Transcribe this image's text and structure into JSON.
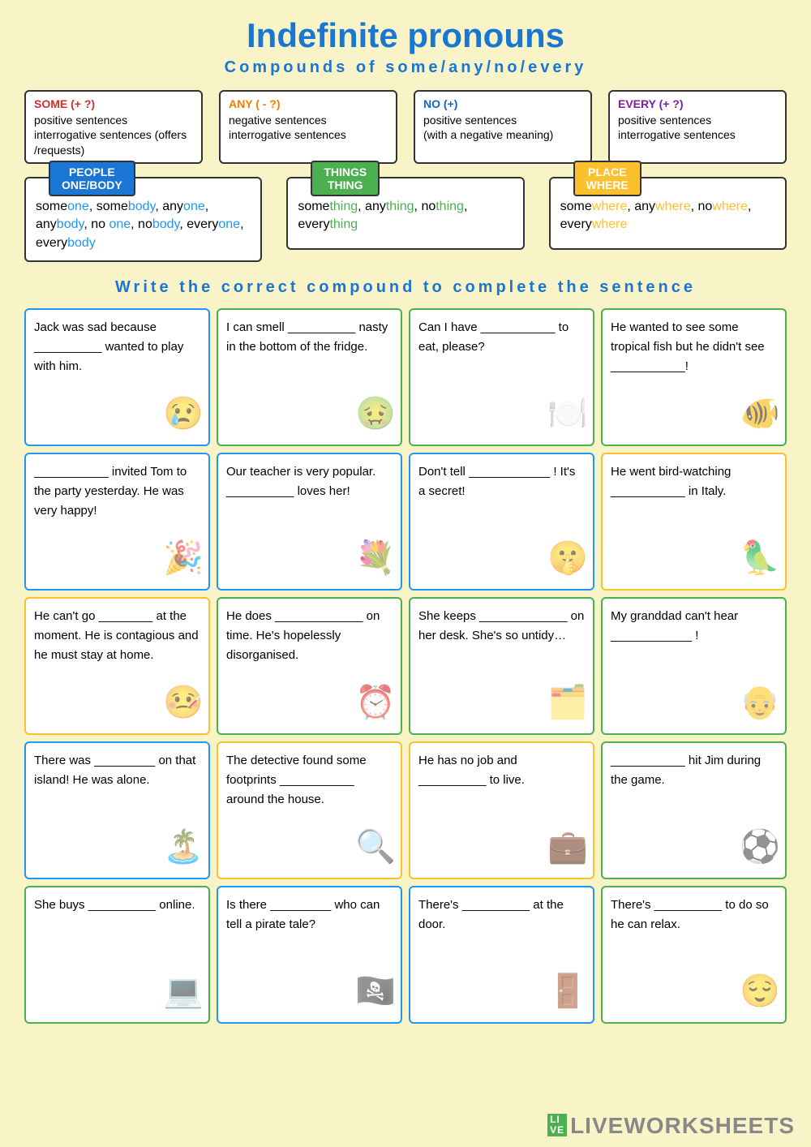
{
  "title": "Indefinite pronouns",
  "subtitle": "Compounds of some/any/no/every",
  "rules": [
    {
      "title": "SOME (+ ?)",
      "color": "red",
      "lines": [
        "positive sentences",
        "interrogative sentences (offers /requests)"
      ]
    },
    {
      "title": "ANY ( - ?)",
      "color": "darkorange",
      "lines": [
        "negative sentences",
        "interrogative sentences"
      ]
    },
    {
      "title": "NO (+)",
      "color": "navy",
      "lines": [
        "positive sentences",
        "(with a negative meaning)"
      ]
    },
    {
      "title": "EVERY (+ ?)",
      "color": "purple",
      "lines": [
        "positive sentences",
        "interrogative sentences"
      ]
    }
  ],
  "categories": [
    {
      "tab": "PEOPLE\nONE/BODY",
      "tabColor": "#1976d2",
      "hlClass": "hl-blue",
      "words": [
        [
          "some",
          "one"
        ],
        [
          "some",
          "body"
        ],
        [
          "any",
          "one"
        ],
        [
          "any",
          "body"
        ],
        [
          "no ",
          "one"
        ],
        [
          "no",
          "body"
        ],
        [
          "every",
          "one"
        ],
        [
          "every",
          "body"
        ]
      ]
    },
    {
      "tab": "THINGS\nTHING",
      "tabColor": "#4caf50",
      "hlClass": "hl-green",
      "words": [
        [
          "some",
          "thing"
        ],
        [
          "any",
          "thing"
        ],
        [
          "no",
          "thing"
        ],
        [
          "every",
          "thing"
        ]
      ]
    },
    {
      "tab": "PLACE\nWHERE",
      "tabColor": "#fbc02d",
      "hlClass": "hl-yellow",
      "words": [
        [
          "some",
          "where"
        ],
        [
          "any",
          "where"
        ],
        [
          "no",
          "where"
        ],
        [
          "every",
          "where"
        ]
      ]
    }
  ],
  "instruction": "Write the correct compound to complete the sentence",
  "cards": [
    {
      "color": "blue",
      "text": "Jack was sad because __________ wanted to play with him."
    },
    {
      "color": "green",
      "text": "I can smell __________ nasty in the bottom of the fridge."
    },
    {
      "color": "green",
      "text": "Can I have ___________ to eat, please?"
    },
    {
      "color": "green",
      "text": "He wanted to see some tropical fish but he didn't see ___________!"
    },
    {
      "color": "blue",
      "text": "___________ invited Tom to the party yesterday. He was very happy!"
    },
    {
      "color": "blue",
      "text": "Our teacher is very popular. __________ loves her!"
    },
    {
      "color": "blue",
      "text": "Don't tell ____________ ! It's a  secret!"
    },
    {
      "color": "yellow",
      "text": "He went bird-watching ___________ in Italy."
    },
    {
      "color": "yellow",
      "text": "He can't go ________ at the moment. He is contagious and he must stay at home."
    },
    {
      "color": "green",
      "text": "He does _____________ on time. He's hopelessly disorganised."
    },
    {
      "color": "green",
      "text": "She keeps _____________ on her desk. She's so untidy…"
    },
    {
      "color": "green",
      "text": "My granddad can't hear ____________ !"
    },
    {
      "color": "blue",
      "text": "There was _________ on that island! He was alone."
    },
    {
      "color": "yellow",
      "text": "The detective found some footprints ___________ around the house."
    },
    {
      "color": "yellow",
      "text": "He has no job and __________ to live."
    },
    {
      "color": "green",
      "text": "___________ hit Jim during the game."
    },
    {
      "color": "green",
      "text": "She buys __________ online."
    },
    {
      "color": "blue",
      "text": "Is there _________ who can tell a pirate tale?"
    },
    {
      "color": "blue",
      "text": "There's __________ at the door."
    },
    {
      "color": "green",
      "text": "There's __________ to do so he can relax."
    }
  ],
  "watermark": "LIVEWORKSHEETS"
}
